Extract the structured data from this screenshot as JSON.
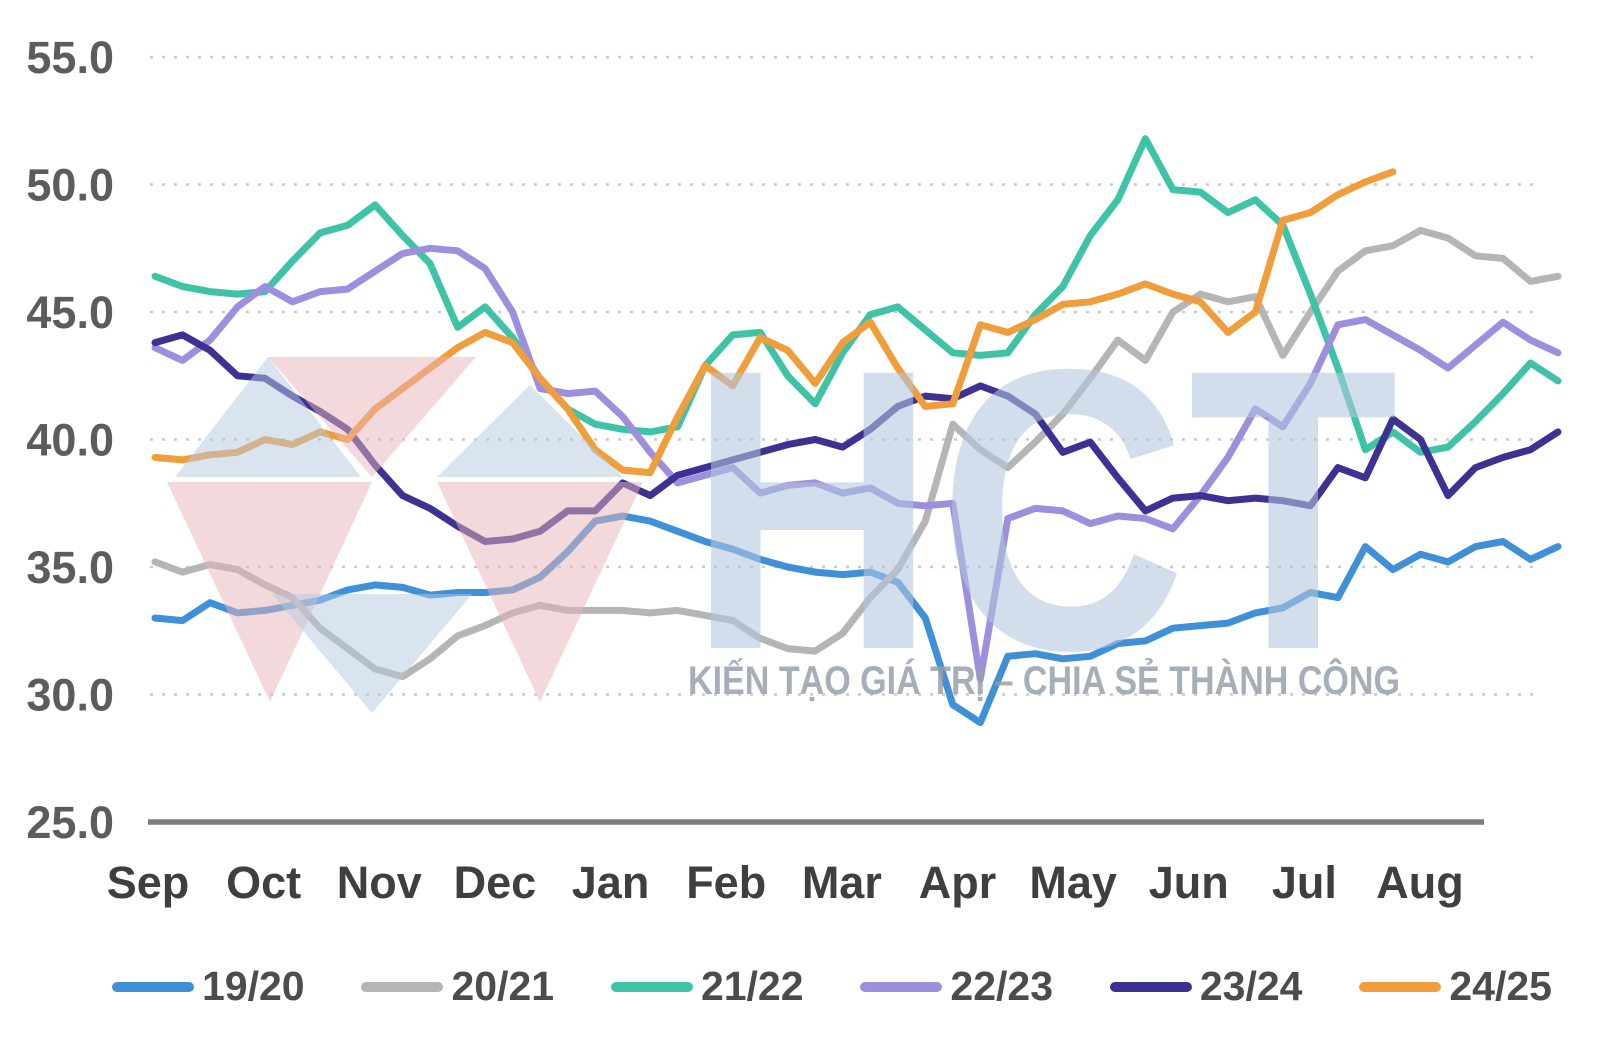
{
  "watermark": {
    "brand": "HCT",
    "slogan": "KIẾN TẠO GIÁ TRỊ – CHIA SẺ THÀNH CÔNG",
    "brand_color": "rgba(177,198,220,0.58)",
    "slogan_color": "rgba(150,160,172,0.85)",
    "diamond_pink": "rgba(231,179,183,0.5)",
    "diamond_blue": "rgba(181,202,223,0.5)"
  },
  "chart_data": {
    "type": "line",
    "title": "",
    "xlabel": "",
    "ylabel": "",
    "grid": "dotted-horizontal",
    "legend_position": "bottom",
    "x_axis": {
      "months": [
        "Sep",
        "Oct",
        "Nov",
        "Dec",
        "Jan",
        "Feb",
        "Mar",
        "Apr",
        "May",
        "Jun",
        "Jul",
        "Aug"
      ]
    },
    "y_axis": {
      "min": 25.0,
      "max": 55.0,
      "tick_step": 5.0,
      "tick_labels": [
        "55.0",
        "50.0",
        "45.0",
        "40.0",
        "35.0",
        "30.0",
        "25.0"
      ],
      "tick_values": [
        55,
        50,
        45,
        40,
        35,
        30,
        25
      ]
    },
    "series": [
      {
        "name": "19/20",
        "color": "#4090d8",
        "values": [
          33.0,
          32.9,
          33.6,
          33.2,
          33.3,
          33.5,
          33.7,
          34.1,
          34.3,
          34.2,
          33.9,
          34.0,
          34.0,
          34.1,
          34.6,
          35.6,
          36.8,
          37.0,
          36.8,
          36.4,
          36.0,
          35.7,
          35.3,
          35.0,
          34.8,
          34.7,
          34.8,
          34.4,
          33.0,
          29.6,
          28.9,
          31.5,
          31.6,
          31.4,
          31.5,
          32.0,
          32.1,
          32.6,
          32.7,
          32.8,
          33.2,
          33.4,
          34.0,
          33.8,
          35.8,
          34.9,
          35.5,
          35.2,
          35.8,
          36.0,
          35.3,
          35.8
        ]
      },
      {
        "name": "20/21",
        "color": "#b5b5b5",
        "values": [
          35.2,
          34.8,
          35.1,
          34.9,
          34.3,
          33.8,
          32.6,
          31.8,
          31.0,
          30.7,
          31.4,
          32.3,
          32.7,
          33.2,
          33.5,
          33.3,
          33.3,
          33.3,
          33.2,
          33.3,
          33.1,
          32.9,
          32.2,
          31.8,
          31.7,
          32.4,
          33.8,
          34.9,
          36.8,
          40.6,
          39.6,
          38.9,
          39.9,
          41.0,
          42.4,
          43.9,
          43.1,
          45.0,
          45.7,
          45.4,
          45.6,
          43.3,
          45.0,
          46.6,
          47.4,
          47.6,
          48.2,
          47.9,
          47.2,
          47.1,
          46.2,
          46.4
        ]
      },
      {
        "name": "21/22",
        "color": "#3ec3a6",
        "values": [
          46.4,
          46.0,
          45.8,
          45.7,
          45.8,
          47.0,
          48.1,
          48.4,
          49.2,
          48.0,
          46.9,
          44.4,
          45.2,
          44.0,
          42.4,
          41.2,
          40.6,
          40.4,
          40.3,
          40.5,
          42.9,
          44.1,
          44.2,
          42.5,
          41.4,
          43.4,
          44.9,
          45.2,
          44.3,
          43.4,
          43.3,
          43.4,
          44.9,
          46.0,
          48.0,
          49.4,
          51.8,
          49.8,
          49.7,
          48.9,
          49.4,
          48.4,
          45.7,
          42.8,
          39.6,
          40.3,
          39.5,
          39.7,
          40.7,
          41.8,
          43.0,
          42.3
        ]
      },
      {
        "name": "22/23",
        "color": "#9d8fde",
        "values": [
          43.6,
          43.1,
          43.9,
          45.2,
          46.0,
          45.4,
          45.8,
          45.9,
          46.6,
          47.3,
          47.5,
          47.4,
          46.7,
          45.0,
          42.0,
          41.8,
          41.9,
          40.9,
          39.5,
          38.3,
          38.6,
          38.9,
          37.9,
          38.2,
          38.3,
          37.9,
          38.1,
          37.5,
          37.4,
          37.5,
          30.6,
          36.9,
          37.3,
          37.2,
          36.7,
          37.0,
          36.9,
          36.5,
          37.8,
          39.3,
          41.2,
          40.5,
          42.2,
          44.5,
          44.7,
          44.1,
          43.5,
          42.8,
          43.7,
          44.6,
          43.9,
          43.4
        ]
      },
      {
        "name": "23/24",
        "color": "#3d3192",
        "values": [
          43.8,
          44.1,
          43.5,
          42.5,
          42.4,
          41.7,
          41.1,
          40.4,
          39.0,
          37.8,
          37.3,
          36.6,
          36.0,
          36.1,
          36.4,
          37.2,
          37.2,
          38.3,
          37.8,
          38.6,
          38.9,
          39.2,
          39.5,
          39.8,
          40.0,
          39.7,
          40.4,
          41.3,
          41.7,
          41.6,
          42.1,
          41.7,
          41.0,
          39.5,
          39.9,
          38.5,
          37.2,
          37.7,
          37.8,
          37.6,
          37.7,
          37.6,
          37.4,
          38.9,
          38.5,
          40.8,
          40.0,
          37.8,
          38.9,
          39.3,
          39.6,
          40.3
        ]
      },
      {
        "name": "24/25",
        "color": "#f09d3c",
        "values": [
          39.3,
          39.2,
          39.4,
          39.5,
          40.0,
          39.8,
          40.3,
          40.0,
          41.2,
          42.0,
          42.8,
          43.6,
          44.2,
          43.8,
          42.4,
          41.2,
          39.6,
          38.8,
          38.7,
          40.9,
          42.9,
          42.1,
          44.0,
          43.5,
          42.2,
          43.8,
          44.6,
          42.8,
          41.3,
          41.4,
          44.5,
          44.2,
          44.7,
          45.3,
          45.4,
          45.7,
          46.1,
          45.7,
          45.4,
          44.2,
          45.0,
          48.6,
          48.9,
          49.6,
          50.1,
          50.5
        ]
      }
    ]
  },
  "legend": {
    "items": [
      "19/20",
      "20/21",
      "21/22",
      "22/23",
      "23/24",
      "24/25"
    ]
  }
}
